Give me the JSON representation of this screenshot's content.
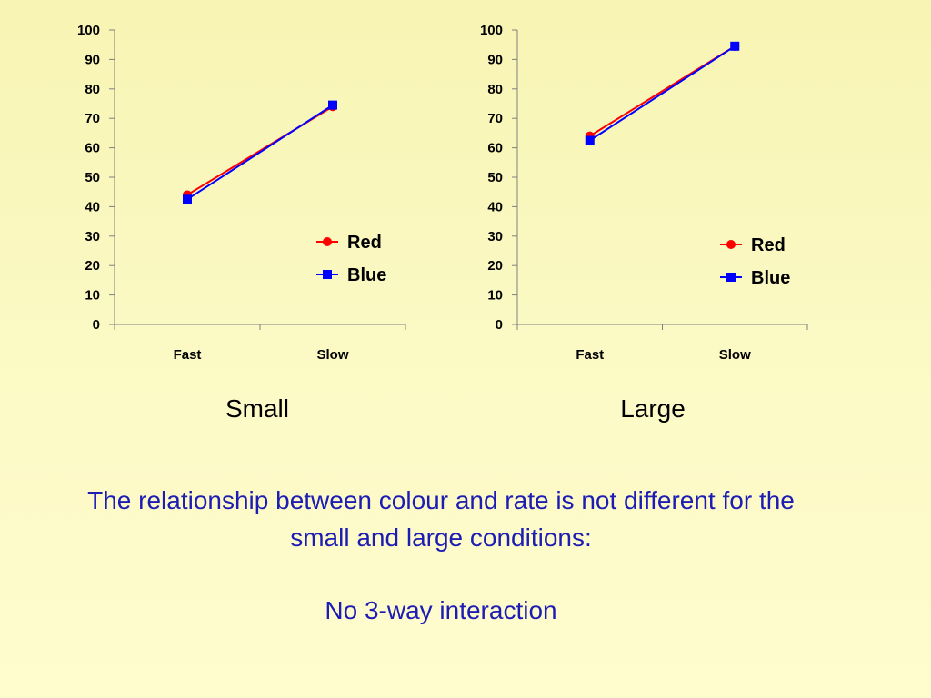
{
  "colors": {
    "red_series": "#ff0000",
    "blue_series": "#0000ff",
    "conclusion_text": "#1d1db4"
  },
  "chart_data": [
    {
      "type": "line",
      "title": "Small",
      "categories": [
        "Fast",
        "Slow"
      ],
      "series": [
        {
          "name": "Red",
          "color": "#ff0000",
          "marker": "circle",
          "values": [
            44,
            74
          ]
        },
        {
          "name": "Blue",
          "color": "#0000ff",
          "marker": "square",
          "values": [
            42.5,
            74.5
          ]
        }
      ],
      "ylim": [
        0,
        100
      ],
      "yticks": [
        0,
        10,
        20,
        30,
        40,
        50,
        60,
        70,
        80,
        90,
        100
      ],
      "grid": false,
      "legend_position": "right"
    },
    {
      "type": "line",
      "title": "Large",
      "categories": [
        "Fast",
        "Slow"
      ],
      "series": [
        {
          "name": "Red",
          "color": "#ff0000",
          "marker": "circle",
          "values": [
            64,
            94.5
          ]
        },
        {
          "name": "Blue",
          "color": "#0000ff",
          "marker": "square",
          "values": [
            62.5,
            94.5
          ]
        }
      ],
      "ylim": [
        0,
        100
      ],
      "yticks": [
        0,
        10,
        20,
        30,
        40,
        50,
        60,
        70,
        80,
        90,
        100
      ],
      "grid": false,
      "legend_position": "right"
    }
  ],
  "conclusion": {
    "text": "The relationship between colour and rate is not different for the small and large conditions:",
    "result": "No 3-way interaction"
  }
}
